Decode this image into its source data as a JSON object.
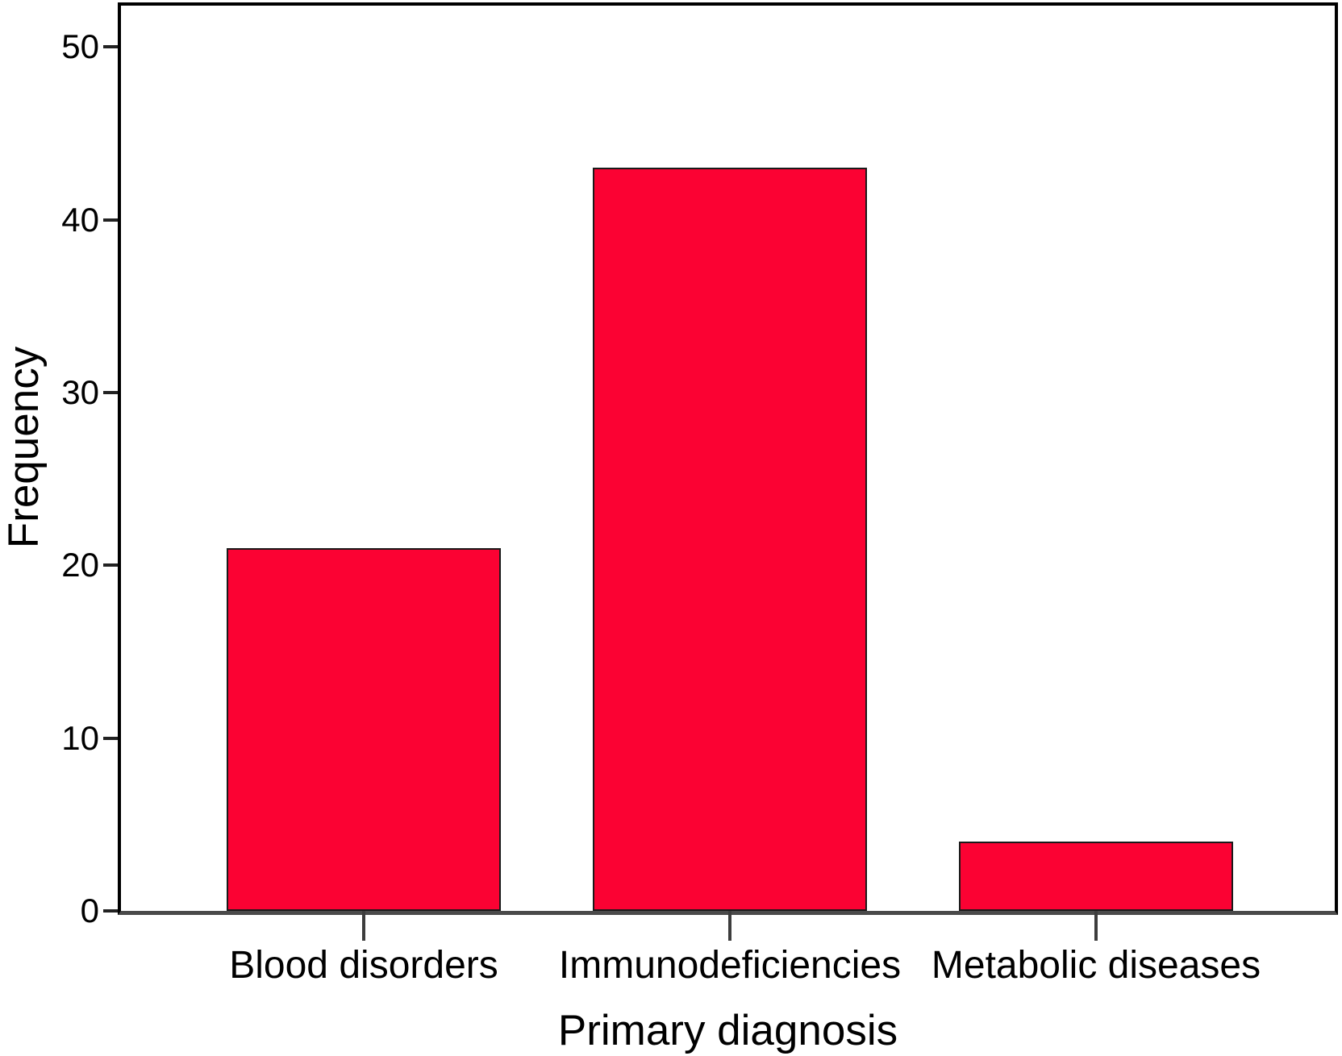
{
  "chart_data": {
    "type": "bar",
    "title": "",
    "categories": [
      "Blood disorders",
      "Immunodeficiencies",
      "Metabolic diseases"
    ],
    "values": [
      21,
      43,
      4
    ],
    "xlabel": "Primary diagnosis",
    "ylabel": "Frequency",
    "ylim": [
      0,
      52.4
    ],
    "yticks": [
      0,
      10,
      20,
      30,
      40,
      50
    ],
    "grid": false,
    "legend": null,
    "bar_fill_color": "#FB0233",
    "bar_border_color": "#1a1a1a",
    "frame_color": "#000000",
    "baseline_color": "#4a4a4a",
    "tick_color": "#222222",
    "text_color": "#000000"
  }
}
